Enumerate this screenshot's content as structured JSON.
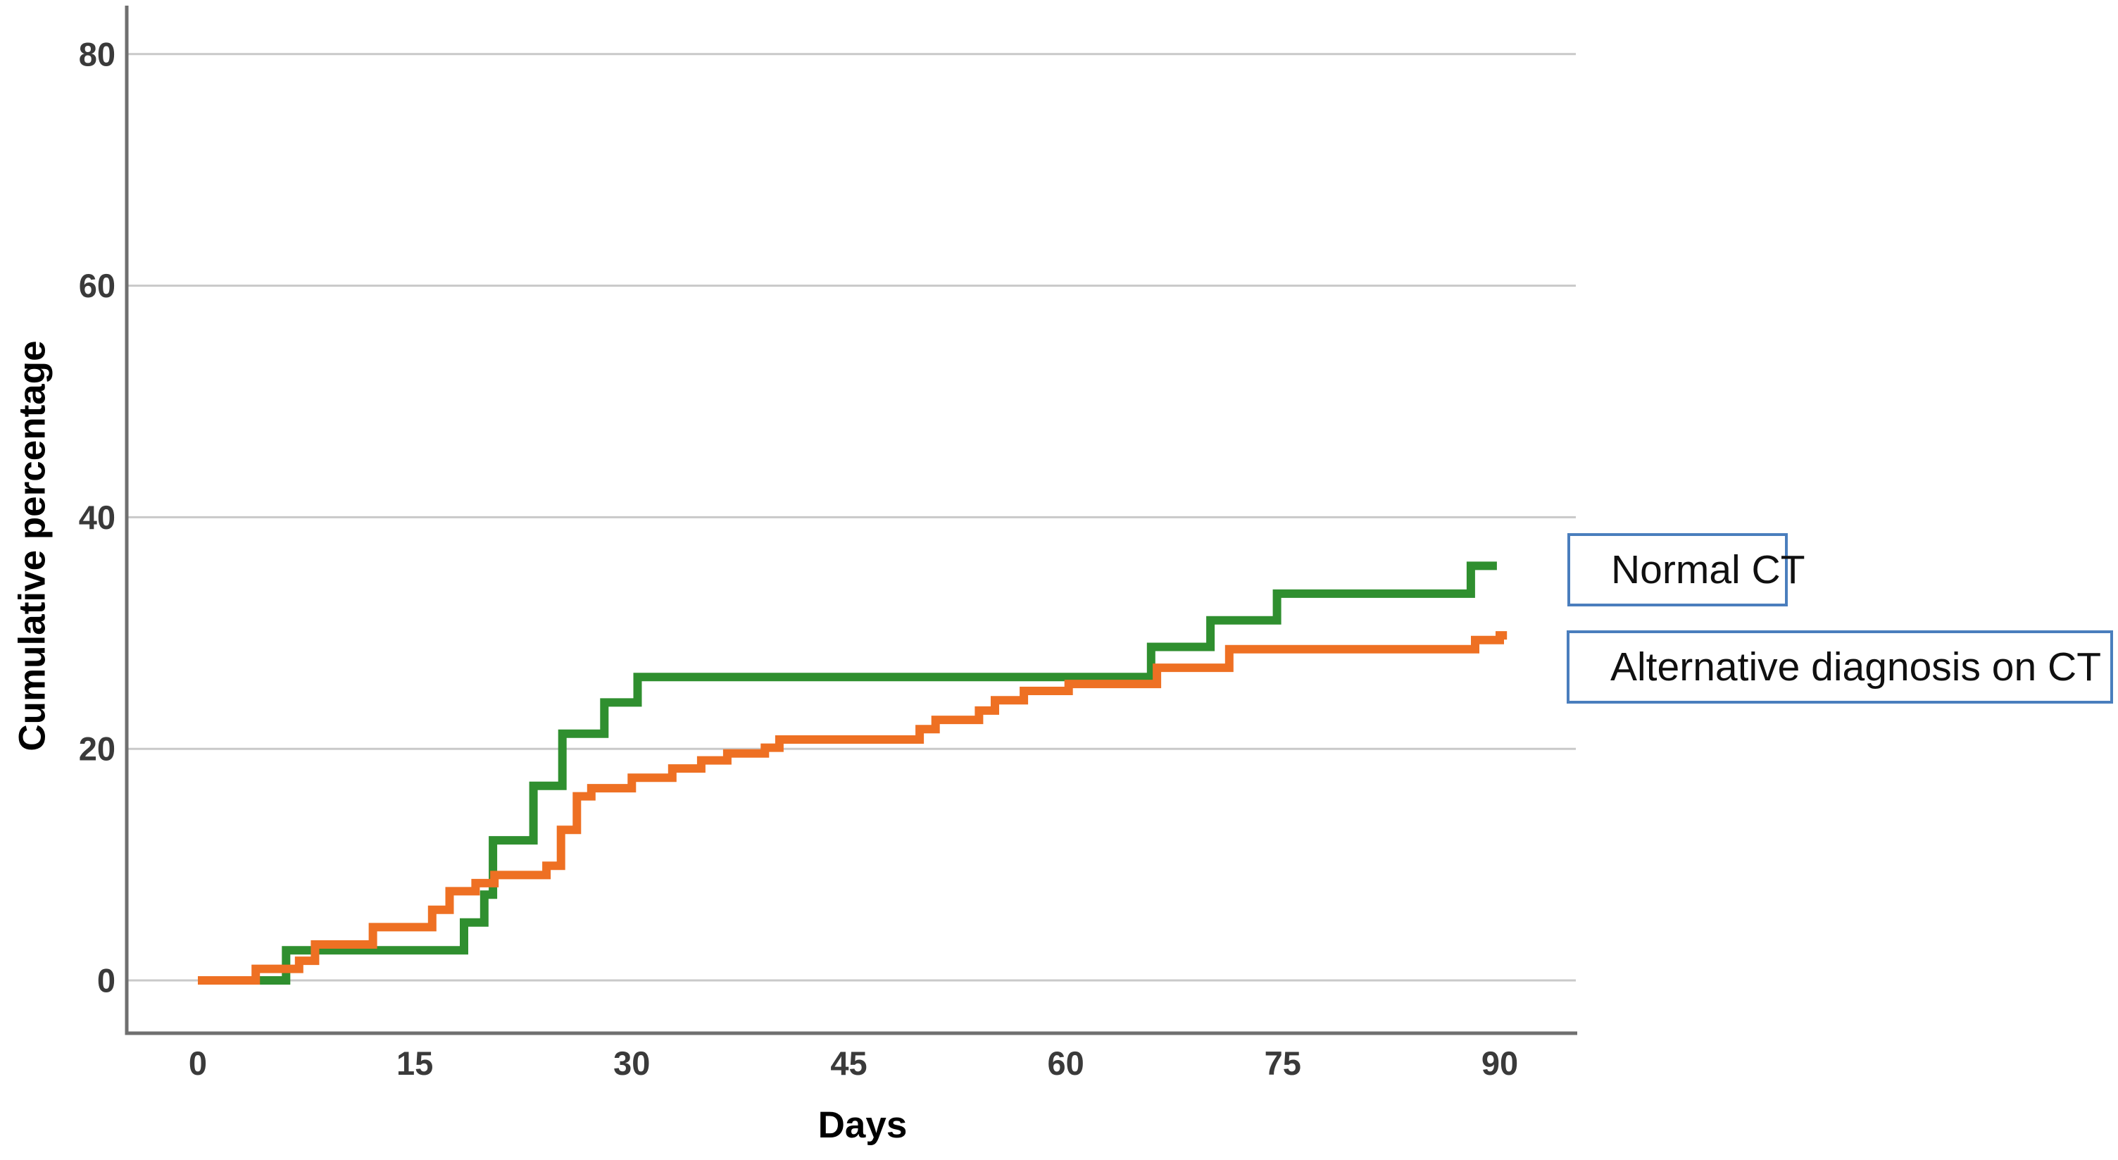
{
  "figure": {
    "background_color": "#ffffff",
    "legend": {
      "position": "right",
      "border_color": "#4a7ebd",
      "text_color": "#101010",
      "items": [
        {
          "label": "Normal CT",
          "color": "#2f8f2f"
        },
        {
          "label": "Alternative diagnosis on CT",
          "color": "#ee7023"
        }
      ]
    },
    "axis_line_color": "#6f6f6f",
    "grid_color": "#c9c9c9",
    "tick_label_color": "#3a3a3a"
  },
  "chart_data": {
    "type": "line",
    "subtype": "step-cumulative-incidence",
    "title": "",
    "xlabel": "Days",
    "ylabel": "Cumulative percentage",
    "xlim": [
      0,
      90
    ],
    "ylim": [
      0,
      85
    ],
    "x_ticks": [
      0,
      15,
      30,
      45,
      60,
      75,
      90
    ],
    "y_ticks": [
      0,
      20,
      40,
      60,
      80
    ],
    "grid": "horizontal",
    "legend_position": "right",
    "series": [
      {
        "name": "Normal CT",
        "color": "#2f8f2f",
        "start": [
          0,
          0
        ],
        "steps": [
          [
            6.1,
            2.6
          ],
          [
            18.4,
            5.0
          ],
          [
            19.8,
            7.4
          ],
          [
            20.4,
            12.1
          ],
          [
            23.2,
            16.8
          ],
          [
            25.2,
            21.3
          ],
          [
            28.1,
            24.0
          ],
          [
            30.4,
            26.2
          ],
          [
            65.9,
            28.8
          ],
          [
            70.0,
            31.1
          ],
          [
            74.6,
            33.4
          ],
          [
            88.0,
            35.8
          ]
        ],
        "end_x": 89.8,
        "final_value": 35.8
      },
      {
        "name": "Alternative diagnosis on CT",
        "color": "#ee7023",
        "start": [
          0,
          0
        ],
        "steps": [
          [
            4.0,
            1.0
          ],
          [
            7.0,
            1.7
          ],
          [
            8.1,
            3.1
          ],
          [
            12.1,
            4.6
          ],
          [
            16.2,
            6.1
          ],
          [
            17.4,
            7.7
          ],
          [
            19.2,
            8.4
          ],
          [
            20.5,
            9.1
          ],
          [
            24.1,
            9.9
          ],
          [
            25.1,
            13.0
          ],
          [
            26.2,
            15.9
          ],
          [
            27.2,
            16.6
          ],
          [
            30.0,
            17.5
          ],
          [
            32.8,
            18.3
          ],
          [
            34.8,
            19.0
          ],
          [
            36.6,
            19.6
          ],
          [
            39.2,
            20.1
          ],
          [
            40.2,
            20.8
          ],
          [
            49.9,
            21.7
          ],
          [
            51.0,
            22.5
          ],
          [
            54.0,
            23.3
          ],
          [
            55.1,
            24.2
          ],
          [
            57.1,
            25.0
          ],
          [
            60.2,
            25.6
          ],
          [
            66.3,
            27.0
          ],
          [
            71.3,
            28.6
          ],
          [
            88.3,
            29.4
          ],
          [
            90.0,
            29.8
          ]
        ],
        "end_x": 90.5,
        "final_value": 29.8
      }
    ]
  }
}
